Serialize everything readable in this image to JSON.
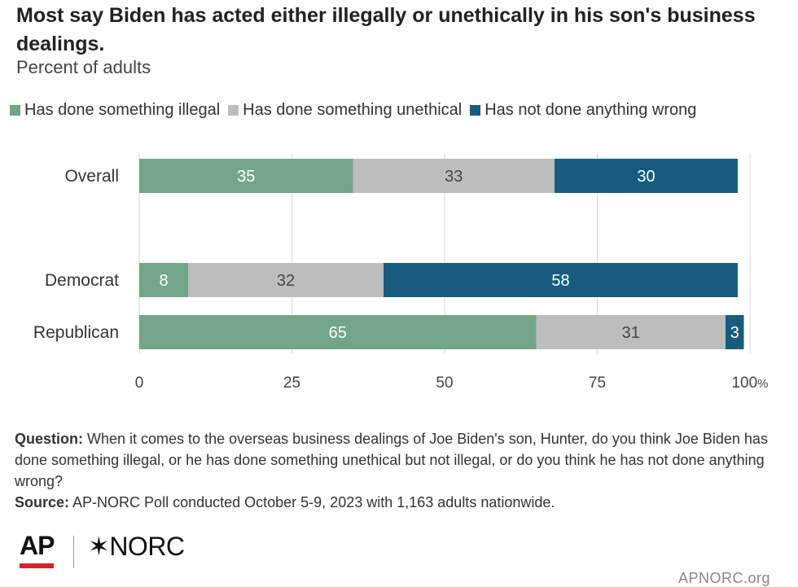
{
  "colors": {
    "illegal": "#73a688",
    "unethical": "#bdbdbd",
    "not_wrong": "#175c7f",
    "grid": "#d9d9d9",
    "ap_red": "#d8222a"
  },
  "notes": {
    "question_label": "Question:",
    "question_text": "When it comes to the overseas business dealings of Joe Biden's son, Hunter, do you think Joe Biden has done something illegal, or he has done something unethical but not illegal, or do you think he has not done anything wrong?",
    "source_label": "Source:",
    "source_text": "AP-NORC Poll conducted October 5-9, 2023 with 1,163 adults nationwide."
  },
  "footer": {
    "logo_ap": "AP",
    "logo_norc_star": "✶",
    "logo_norc": "NORC",
    "url": "APNORC.org"
  },
  "chart_data": {
    "type": "bar",
    "orientation": "horizontal",
    "stacked": true,
    "title": "Most say Biden has acted either illegally or unethically in his son's business dealings.",
    "subtitle": "Percent of adults",
    "categories": [
      "Overall",
      "Democrat",
      "Republican"
    ],
    "series": [
      {
        "name": "Has done something illegal",
        "values": [
          35,
          8,
          65
        ]
      },
      {
        "name": "Has done something unethical",
        "values": [
          33,
          32,
          31
        ]
      },
      {
        "name": "Has not done anything wrong",
        "values": [
          30,
          58,
          3
        ]
      }
    ],
    "xlim": [
      0,
      100
    ],
    "ticks": [
      0,
      25,
      50,
      75,
      100
    ],
    "tick_labels": [
      "0",
      "25",
      "50",
      "75",
      "100"
    ],
    "unit_suffix": "%",
    "grid": true,
    "legend_position": "top"
  }
}
